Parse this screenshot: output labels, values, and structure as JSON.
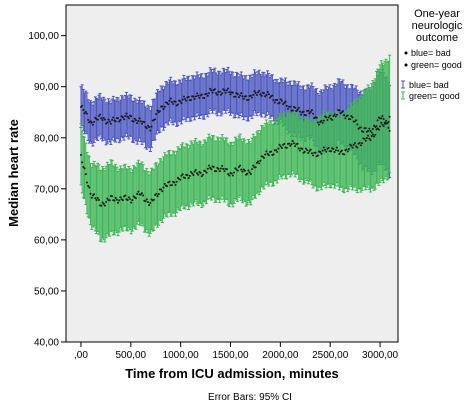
{
  "chart_data": {
    "type": "line",
    "title": "",
    "xlabel": "Time from ICU admission, minutes",
    "ylabel": "Median heart rate",
    "xlim": [
      -150,
      3180
    ],
    "ylim": [
      40,
      106
    ],
    "x_ticks": [
      0,
      500,
      1000,
      1500,
      2000,
      2500,
      3000
    ],
    "x_tick_labels": [
      ",00",
      "500,00",
      "1000,00",
      "1500,00",
      "2000,00",
      "2500,00",
      "3000,00"
    ],
    "y_ticks": [
      40,
      50,
      60,
      70,
      80,
      90,
      100
    ],
    "y_tick_labels": [
      "40,00",
      "50,00",
      "60,00",
      "70,00",
      "80,00",
      "90,00",
      "100,00"
    ],
    "background": "#eeeeee",
    "grid": false,
    "legend": {
      "placement": "right",
      "title_lines": [
        "One-year",
        "neurologic",
        "outcome"
      ],
      "marker_entries": [
        "blue= bad",
        "green= good"
      ],
      "errorbar_entries": [
        "blue= bad",
        "green= good"
      ]
    },
    "footnote": "Error Bars: 95% CI",
    "series": [
      {
        "name": "blue= bad",
        "color": "#4a55c0",
        "x": [
          0,
          100,
          200,
          300,
          400,
          500,
          600,
          700,
          800,
          900,
          1000,
          1100,
          1200,
          1300,
          1400,
          1500,
          1600,
          1700,
          1800,
          1900,
          2000,
          2100,
          2200,
          2300,
          2400,
          2500,
          2600,
          2700,
          2800,
          2900,
          3000,
          3100
        ],
        "median": [
          86,
          83,
          84,
          83,
          84,
          84,
          83,
          82,
          86,
          87,
          87,
          88,
          88,
          89,
          89,
          89,
          88,
          88,
          89,
          88,
          87,
          86,
          85,
          85,
          83,
          84,
          85,
          84,
          82,
          81,
          84,
          82
        ],
        "lower": [
          82,
          79,
          80,
          79,
          80,
          80,
          79,
          78,
          82,
          83,
          83,
          84,
          84,
          85,
          85,
          85,
          84,
          84,
          85,
          84,
          83,
          81,
          80,
          80,
          77,
          78,
          79,
          78,
          75,
          73,
          75,
          73
        ],
        "upper": [
          90,
          87,
          88,
          87,
          88,
          88,
          87,
          86,
          90,
          91,
          91,
          92,
          92,
          93,
          93,
          93,
          92,
          92,
          93,
          92,
          91,
          91,
          90,
          90,
          89,
          90,
          91,
          90,
          89,
          89,
          93,
          91
        ]
      },
      {
        "name": "green= good",
        "color": "#3cb554",
        "x": [
          0,
          100,
          200,
          300,
          400,
          500,
          600,
          700,
          800,
          900,
          1000,
          1100,
          1200,
          1300,
          1400,
          1500,
          1600,
          1700,
          1800,
          1900,
          2000,
          2100,
          2200,
          2300,
          2400,
          2500,
          2600,
          2700,
          2800,
          2900,
          3000,
          3100
        ],
        "median": [
          76,
          69,
          67,
          68,
          68,
          68,
          69,
          67,
          70,
          71,
          72,
          73,
          73,
          74,
          74,
          73,
          74,
          73,
          76,
          77,
          78,
          79,
          78,
          77,
          77,
          78,
          77,
          78,
          79,
          80,
          82,
          84
        ],
        "lower": [
          70,
          63,
          60,
          61,
          62,
          62,
          63,
          61,
          64,
          65,
          66,
          67,
          67,
          68,
          68,
          67,
          68,
          67,
          70,
          71,
          72,
          73,
          72,
          71,
          70,
          71,
          70,
          70,
          70,
          70,
          71,
          73
        ],
        "upper": [
          82,
          75,
          74,
          75,
          74,
          74,
          75,
          73,
          76,
          77,
          78,
          79,
          79,
          80,
          80,
          79,
          80,
          79,
          82,
          83,
          84,
          85,
          84,
          83,
          84,
          85,
          84,
          86,
          88,
          90,
          94,
          96
        ]
      }
    ]
  }
}
